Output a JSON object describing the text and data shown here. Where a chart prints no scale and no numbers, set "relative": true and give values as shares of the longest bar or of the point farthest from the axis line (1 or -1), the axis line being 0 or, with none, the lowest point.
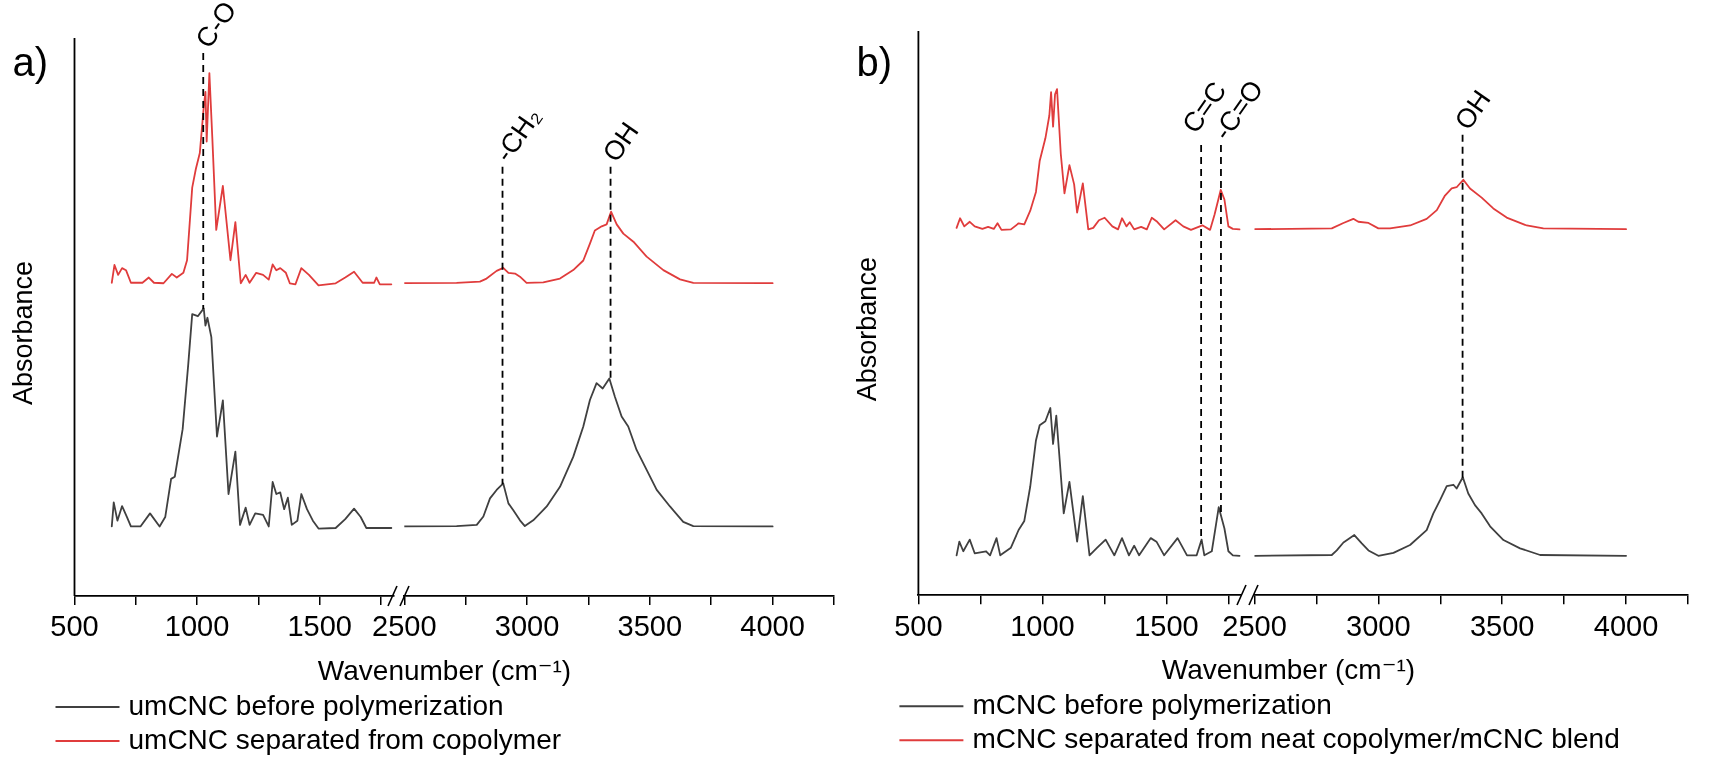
{
  "chart_data": [
    {
      "type": "line",
      "title": "a)",
      "xlabel": "Wavenumber (cm⁻¹)",
      "ylabel": "Absorbance",
      "relative": true,
      "xlim": [
        500,
        1800
      ],
      "xticks": [
        500,
        {
          "value": 750,
          "label": null
        },
        1000,
        {
          "value": 1250,
          "label": null
        },
        1500,
        {
          "value": 1750,
          "label": null
        }
      ],
      "legend": "bottom right",
      "ref_lines": [
        {
          "axis": "x",
          "value": 1025,
          "label": "C-O",
          "line_style": "dashed",
          "color": "#000000"
        }
      ],
      "series": [
        {
          "name": "umCNC before polymerization",
          "color": "#404040",
          "x": [
            652,
            660,
            675,
            694,
            714,
            730,
            769,
            808,
            847,
            870,
            894,
            909,
            941,
            964,
            980,
            1003,
            1027,
            1034,
            1042,
            1058,
            1081,
            1105,
            1128,
            1156,
            1175,
            1198,
            1214,
            1237,
            1269,
            1292,
            1308,
            1323,
            1339,
            1355,
            1370,
            1386,
            1409,
            1425,
            1448,
            1472,
            1495,
            1565,
            1604,
            1640,
            1667,
            1690,
            1792
          ],
          "values": [
            0.133,
            0.179,
            0.144,
            0.172,
            0.151,
            0.133,
            0.133,
            0.158,
            0.133,
            0.151,
            0.224,
            0.228,
            0.319,
            0.444,
            0.539,
            0.535,
            0.55,
            0.517,
            0.532,
            0.495,
            0.305,
            0.374,
            0.195,
            0.276,
            0.136,
            0.169,
            0.136,
            0.158,
            0.155,
            0.133,
            0.218,
            0.195,
            0.198,
            0.166,
            0.188,
            0.136,
            0.144,
            0.195,
            0.166,
            0.144,
            0.129,
            0.13,
            0.147,
            0.167,
            0.151,
            0.13,
            0.13
          ]
        },
        {
          "name": "umCNC separated from copolymer",
          "color": "#e03c3c",
          "x": [
            652,
            663,
            678,
            694,
            710,
            730,
            777,
            803,
            824,
            863,
            897,
            917,
            944,
            959,
            980,
            995,
            1011,
            1027,
            1034,
            1039,
            1050,
            1062,
            1078,
            1105,
            1136,
            1156,
            1178,
            1198,
            1214,
            1241,
            1269,
            1292,
            1308,
            1323,
            1339,
            1362,
            1378,
            1401,
            1425,
            1456,
            1495,
            1565,
            1604,
            1640,
            1675,
            1722,
            1731,
            1745,
            1792
          ],
          "values": [
            0.599,
            0.633,
            0.614,
            0.627,
            0.623,
            0.599,
            0.599,
            0.609,
            0.599,
            0.598,
            0.616,
            0.609,
            0.618,
            0.642,
            0.781,
            0.817,
            0.847,
            0.935,
            0.964,
            0.869,
            1,
            0.876,
            0.7,
            0.784,
            0.642,
            0.715,
            0.598,
            0.614,
            0.599,
            0.618,
            0.614,
            0.605,
            0.634,
            0.623,
            0.627,
            0.618,
            0.598,
            0.596,
            0.627,
            0.614,
            0.594,
            0.598,
            0.609,
            0.62,
            0.599,
            0.599,
            0.609,
            0.596,
            0.596
          ]
        }
      ]
    },
    {
      "type": "line",
      "relative": true,
      "xlim": [
        2500,
        4250
      ],
      "xticks": [
        2500,
        {
          "value": 2750,
          "label": null
        },
        3000,
        {
          "value": 3250,
          "label": null
        },
        3500,
        {
          "value": 3750,
          "label": null
        },
        4000,
        {
          "value": 4250,
          "label": null
        }
      ],
      "ref_lines": [
        {
          "axis": "x",
          "value": 2900,
          "label": "-CH₂",
          "line_style": "dashed",
          "color": "#000000"
        },
        {
          "axis": "x",
          "value": 3340,
          "label": "OH",
          "line_style": "dashed",
          "color": "#000000"
        }
      ],
      "series": [
        {
          "color": "#404040",
          "x": [
            2500,
            2713,
            2795,
            2822,
            2849,
            2876,
            2903,
            2924,
            2944,
            2971,
            2991,
            3025,
            3080,
            3134,
            3188,
            3229,
            3256,
            3283,
            3308,
            3335,
            3358,
            3385,
            3412,
            3446,
            3487,
            3528,
            3582,
            3636,
            3677,
            4000
          ],
          "values": [
            0.181,
            0.182,
            0.185,
            0.207,
            0.254,
            0.276,
            0.293,
            0.241,
            0.223,
            0.197,
            0.182,
            0.197,
            0.233,
            0.284,
            0.362,
            0.441,
            0.51,
            0.554,
            0.54,
            0.566,
            0.518,
            0.467,
            0.441,
            0.38,
            0.328,
            0.276,
            0.233,
            0.193,
            0.182,
            0.181
          ]
        },
        {
          "color": "#e03c3c",
          "x": [
            2500,
            2713,
            2808,
            2835,
            2876,
            2903,
            2924,
            2951,
            2971,
            2998,
            3066,
            3134,
            3188,
            3229,
            3256,
            3276,
            3304,
            3324,
            3342,
            3365,
            3392,
            3433,
            3487,
            3555,
            3623,
            3677,
            4000
          ],
          "values": [
            0.814,
            0.815,
            0.818,
            0.826,
            0.846,
            0.854,
            0.841,
            0.839,
            0.831,
            0.815,
            0.816,
            0.826,
            0.848,
            0.873,
            0.917,
            0.951,
            0.962,
            0.967,
            1,
            0.967,
            0.943,
            0.922,
            0.883,
            0.848,
            0.824,
            0.815,
            0.814
          ]
        }
      ]
    },
    {
      "type": "line",
      "title": "b)",
      "xlabel": "Wavenumber (cm⁻¹)",
      "ylabel": "Absorbance",
      "relative": true,
      "xlim": [
        500,
        1800
      ],
      "xticks": [
        500,
        {
          "value": 750,
          "label": null
        },
        1000,
        {
          "value": 1250,
          "label": null
        },
        1500,
        {
          "value": 1750,
          "label": null
        }
      ],
      "legend": "bottom right",
      "ref_lines": [
        {
          "axis": "x",
          "value": 1640,
          "label": "C=C",
          "line_style": "dashed",
          "color": "#000000"
        },
        {
          "axis": "x",
          "value": 1720,
          "label": "-C=O",
          "line_style": "dashed",
          "color": "#000000"
        }
      ],
      "series": [
        {
          "name": "mCNC before polymerization",
          "color": "#404040",
          "x": [
            654,
            665,
            681,
            707,
            727,
            773,
            789,
            815,
            830,
            873,
            904,
            927,
            951,
            974,
            989,
            1012,
            1032,
            1043,
            1056,
            1066,
            1086,
            1109,
            1140,
            1163,
            1190,
            1221,
            1255,
            1290,
            1321,
            1349,
            1370,
            1390,
            1437,
            1460,
            1491,
            1545,
            1583,
            1622,
            1642,
            1653,
            1683,
            1711,
            1734,
            1750,
            1768,
            1795
          ],
          "values": [
            0.079,
            0.106,
            0.087,
            0.11,
            0.083,
            0.087,
            0.079,
            0.113,
            0.079,
            0.094,
            0.129,
            0.147,
            0.215,
            0.306,
            0.336,
            0.344,
            0.37,
            0.299,
            0.355,
            0.291,
            0.162,
            0.224,
            0.106,
            0.196,
            0.079,
            0.094,
            0.11,
            0.079,
            0.113,
            0.079,
            0.098,
            0.079,
            0.113,
            0.106,
            0.079,
            0.113,
            0.079,
            0.079,
            0.11,
            0.079,
            0.087,
            0.174,
            0.132,
            0.087,
            0.079,
            0.078
          ]
        },
        {
          "name": "mCNC separated from neat copolymer/mCNC blend",
          "color": "#e03c3c",
          "x": [
            654,
            668,
            685,
            707,
            727,
            758,
            781,
            804,
            819,
            835,
            873,
            904,
            927,
            951,
            974,
            989,
            1012,
            1028,
            1035,
            1043,
            1051,
            1059,
            1066,
            1074,
            1089,
            1109,
            1128,
            1140,
            1163,
            1185,
            1205,
            1228,
            1251,
            1282,
            1305,
            1321,
            1339,
            1352,
            1370,
            1398,
            1421,
            1441,
            1463,
            1491,
            1537,
            1568,
            1599,
            1645,
            1676,
            1694,
            1719,
            1734,
            1750,
            1768,
            1795
          ],
          "values": [
            0.726,
            0.745,
            0.729,
            0.738,
            0.729,
            0.724,
            0.728,
            0.724,
            0.735,
            0.722,
            0.723,
            0.735,
            0.733,
            0.76,
            0.797,
            0.858,
            0.903,
            0.948,
            0.994,
            0.926,
            0.99,
            1,
            0.941,
            0.873,
            0.794,
            0.85,
            0.812,
            0.756,
            0.814,
            0.723,
            0.726,
            0.741,
            0.746,
            0.729,
            0.723,
            0.745,
            0.729,
            0.737,
            0.723,
            0.728,
            0.723,
            0.746,
            0.738,
            0.723,
            0.741,
            0.729,
            0.722,
            0.731,
            0.722,
            0.752,
            0.801,
            0.782,
            0.729,
            0.724,
            0.723
          ]
        }
      ]
    },
    {
      "type": "line",
      "relative": true,
      "xlim": [
        2500,
        4250
      ],
      "xticks": [
        2500,
        {
          "value": 2750,
          "label": null
        },
        3000,
        {
          "value": 3250,
          "label": null
        },
        3500,
        {
          "value": 3750,
          "label": null
        },
        4000,
        {
          "value": 4250,
          "label": null
        }
      ],
      "ref_lines": [
        {
          "axis": "x",
          "value": 3340,
          "label": "OH",
          "line_style": "dashed",
          "color": "#000000"
        }
      ],
      "series": [
        {
          "color": "#404040",
          "x": [
            2500,
            2812,
            2832,
            2859,
            2903,
            2933,
            2960,
            3000,
            3061,
            3128,
            3195,
            3222,
            3249,
            3276,
            3303,
            3316,
            3341,
            3363,
            3390,
            3417,
            3451,
            3505,
            3572,
            3653,
            4000
          ],
          "values": [
            0.095,
            0.097,
            0.108,
            0.127,
            0.145,
            0.125,
            0.108,
            0.095,
            0.102,
            0.121,
            0.157,
            0.197,
            0.229,
            0.263,
            0.266,
            0.257,
            0.284,
            0.245,
            0.217,
            0.197,
            0.166,
            0.133,
            0.113,
            0.097,
            0.095
          ]
        },
        {
          "color": "#e03c3c",
          "x": [
            2500,
            2812,
            2859,
            2899,
            2919,
            2960,
            3000,
            3047,
            3128,
            3195,
            3236,
            3269,
            3296,
            3316,
            3343,
            3370,
            3417,
            3464,
            3518,
            3599,
            3666,
            4000
          ],
          "values": [
            0.881,
            0.883,
            0.896,
            0.906,
            0.899,
            0.896,
            0.883,
            0.883,
            0.89,
            0.906,
            0.927,
            0.962,
            0.979,
            0.982,
            1,
            0.979,
            0.957,
            0.931,
            0.909,
            0.89,
            0.883,
            0.881
          ]
        }
      ]
    }
  ]
}
